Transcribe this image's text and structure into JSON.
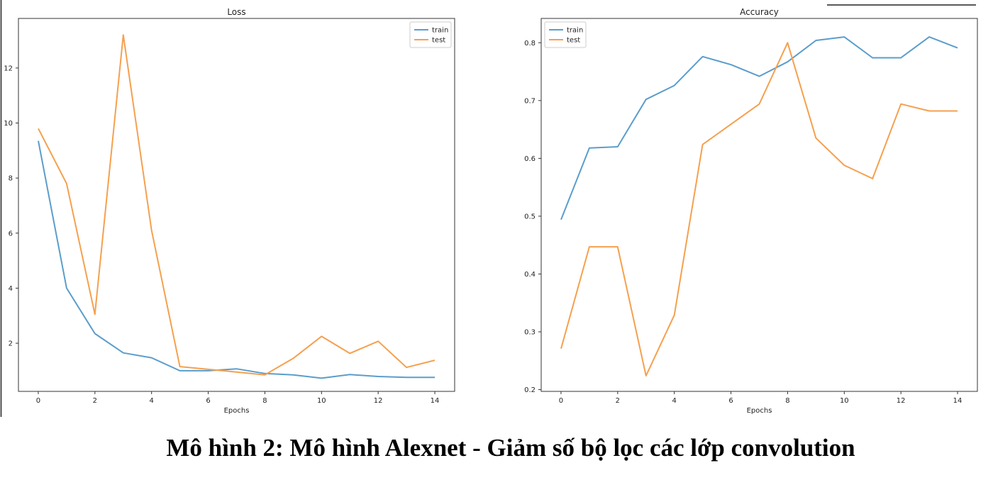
{
  "caption": "Mô hình 2: Mô hình Alexnet - Giảm số bộ lọc các lớp convolution",
  "colors": {
    "train": "#5b9dcb",
    "test": "#f5a04e"
  },
  "chart_data": [
    {
      "type": "line",
      "title": "Loss",
      "xlabel": "Epochs",
      "ylabel": "",
      "x": [
        0,
        1,
        2,
        3,
        4,
        5,
        6,
        7,
        8,
        9,
        10,
        11,
        12,
        13,
        14
      ],
      "xlim": [
        -0.7,
        14.7
      ],
      "ylim": [
        0.25,
        13.8
      ],
      "xticks": [
        0,
        2,
        4,
        6,
        8,
        10,
        12,
        14
      ],
      "yticks": [
        2,
        4,
        6,
        8,
        10,
        12
      ],
      "legend": "top-right",
      "grid": false,
      "series": [
        {
          "name": "train",
          "values": [
            9.35,
            4.0,
            2.35,
            1.65,
            1.47,
            1.0,
            1.0,
            1.07,
            0.9,
            0.85,
            0.73,
            0.86,
            0.79,
            0.76,
            0.76
          ]
        },
        {
          "name": "test",
          "values": [
            9.8,
            7.8,
            3.05,
            13.2,
            6.1,
            1.15,
            1.05,
            0.95,
            0.85,
            1.45,
            2.25,
            1.63,
            2.07,
            1.12,
            1.38
          ]
        }
      ]
    },
    {
      "type": "line",
      "title": "Accuracy",
      "xlabel": "Epochs",
      "ylabel": "",
      "x": [
        0,
        1,
        2,
        3,
        4,
        5,
        6,
        7,
        8,
        9,
        10,
        11,
        12,
        13,
        14
      ],
      "xlim": [
        -0.7,
        14.7
      ],
      "ylim": [
        0.197,
        0.842
      ],
      "xticks": [
        0,
        2,
        4,
        6,
        8,
        10,
        12,
        14
      ],
      "yticks": [
        0.2,
        0.3,
        0.4,
        0.5,
        0.6,
        0.7,
        0.8
      ],
      "legend": "top-left",
      "grid": false,
      "series": [
        {
          "name": "train",
          "values": [
            0.494,
            0.618,
            0.62,
            0.702,
            0.726,
            0.776,
            0.762,
            0.742,
            0.767,
            0.804,
            0.81,
            0.774,
            0.774,
            0.81,
            0.791
          ]
        },
        {
          "name": "test",
          "values": [
            0.271,
            0.447,
            0.447,
            0.224,
            0.329,
            0.624,
            0.659,
            0.694,
            0.8,
            0.635,
            0.588,
            0.565,
            0.694,
            0.682,
            0.682
          ]
        }
      ]
    }
  ]
}
